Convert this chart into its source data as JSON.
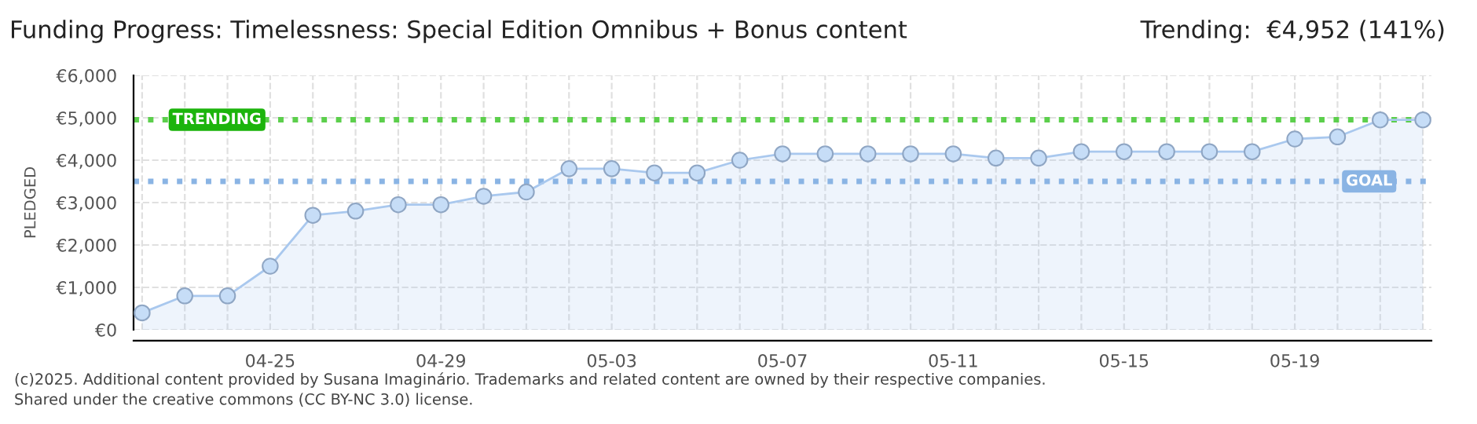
{
  "chart_data": {
    "type": "area",
    "title": "Funding Progress: Timelessness: Special Edition Omnibus + Bonus content",
    "subtitle": "Trending:  €4,952 (141%)",
    "ylabel": "PLEDGED",
    "categories": [
      null,
      null,
      null,
      "04-25",
      null,
      null,
      null,
      "04-29",
      null,
      null,
      null,
      "05-03",
      null,
      null,
      null,
      "05-07",
      null,
      null,
      null,
      "05-11",
      null,
      null,
      null,
      "05-15",
      null,
      null,
      null,
      "05-19",
      null,
      null,
      null
    ],
    "series": [
      {
        "color": "#a9c8ee",
        "values": [
          400,
          800,
          800,
          1500,
          2700,
          2800,
          2950,
          2950,
          3150,
          3250,
          3800,
          3800,
          3700,
          3700,
          4000,
          4150,
          4150,
          4150,
          4150,
          4150,
          4050,
          4050,
          4200,
          4200,
          4200,
          4200,
          4200,
          4500,
          4550,
          4950,
          4950
        ]
      }
    ],
    "ylim": [
      0,
      6000
    ],
    "yticks": [
      {
        "value": 0,
        "label": "€0"
      },
      {
        "value": 1000,
        "label": "€1,000"
      },
      {
        "value": 2000,
        "label": "€2,000"
      },
      {
        "value": 3000,
        "label": "€3,000"
      },
      {
        "value": 4000,
        "label": "€4,000"
      },
      {
        "value": 5000,
        "label": "€5,000"
      },
      {
        "value": 6000,
        "label": "€6,000"
      }
    ],
    "ref_lines": [
      {
        "axis": "y",
        "value": 4952,
        "label": "TRENDING",
        "color": "#5ccf4c",
        "line_style": "dotted"
      },
      {
        "axis": "y",
        "value": 3500,
        "label": "GOAL",
        "color": "#8ab4e4",
        "line_style": "dotted"
      }
    ],
    "grid": true,
    "marker": "circle",
    "annotations": [
      "(c)2025. Additional content provided by Susana Imaginário. Trademarks and related content are owned by their respective companies.",
      "Shared under the creative commons (CC BY-NC 3.0) license."
    ]
  }
}
